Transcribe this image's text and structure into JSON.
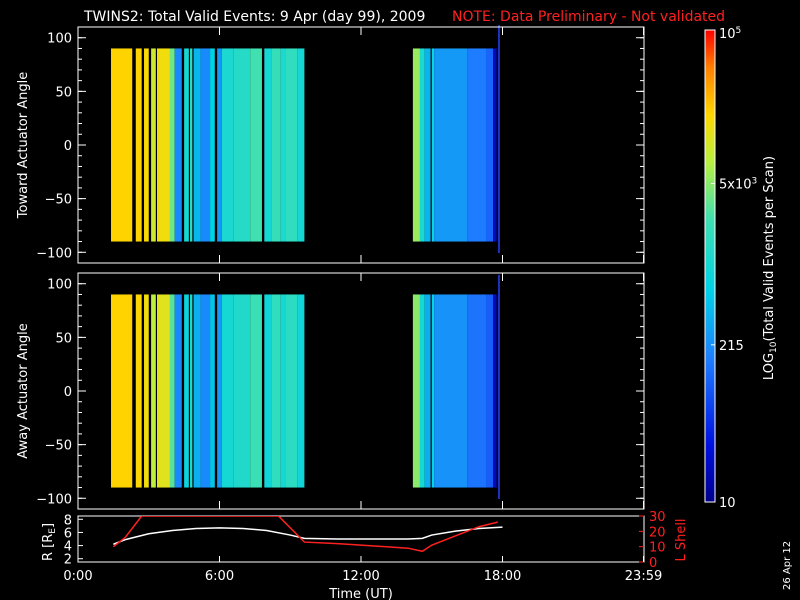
{
  "title": {
    "main": "TWINS2: Total Valid Events:  9 Apr (day  99), 2009",
    "note": "NOTE: Data Preliminary - Not validated"
  },
  "stamp": "26 Apr 12",
  "colors": {
    "background": "#000000",
    "foreground": "#ffffff",
    "note": "#ff2020",
    "lshell_line": "#ff2020",
    "radius_line": "#ffffff"
  },
  "chart_data": [
    {
      "type": "heatmap",
      "ylabel": "Toward Actuator Angle",
      "ylim": [
        -110,
        110
      ],
      "yticks": [
        "100",
        "50",
        "0",
        "−50",
        "−100"
      ],
      "ytick_values": [
        100,
        50,
        0,
        -50,
        -100
      ],
      "xlim": [
        0,
        24
      ],
      "angle_range": [
        -90,
        90
      ],
      "colorscale": "log10",
      "columns": [
        {
          "t0": 1.4,
          "t1": 2.3,
          "log": 4.3
        },
        {
          "t0": 2.45,
          "t1": 2.7,
          "log": 4.3
        },
        {
          "t0": 2.8,
          "t1": 3.0,
          "log": 4.25
        },
        {
          "t0": 3.1,
          "t1": 3.3,
          "log": 4.0
        },
        {
          "t0": 3.35,
          "t1": 3.9,
          "log": 4.2
        },
        {
          "t0": 3.9,
          "t1": 4.1,
          "log": 3.6
        },
        {
          "t0": 4.1,
          "t1": 4.4,
          "log": 2.3
        },
        {
          "t0": 4.5,
          "t1": 4.7,
          "log": 3.0
        },
        {
          "t0": 4.75,
          "t1": 4.85,
          "log": 3.2
        },
        {
          "t0": 4.9,
          "t1": 5.2,
          "log": 2.6
        },
        {
          "t0": 5.2,
          "t1": 5.6,
          "log": 2.3
        },
        {
          "t0": 5.6,
          "t1": 5.8,
          "log": 2.8
        },
        {
          "t0": 5.9,
          "t1": 6.1,
          "log": 2.4
        },
        {
          "t0": 6.1,
          "t1": 6.6,
          "log": 3.05
        },
        {
          "t0": 6.6,
          "t1": 7.3,
          "log": 3.15
        },
        {
          "t0": 7.3,
          "t1": 7.8,
          "log": 3.4
        },
        {
          "t0": 7.9,
          "t1": 8.2,
          "log": 3.0
        },
        {
          "t0": 8.2,
          "t1": 8.6,
          "log": 3.3
        },
        {
          "t0": 8.6,
          "t1": 8.8,
          "log": 3.05
        },
        {
          "t0": 8.8,
          "t1": 9.3,
          "log": 3.25
        },
        {
          "t0": 9.3,
          "t1": 9.6,
          "log": 3.0
        },
        {
          "t0": 14.2,
          "t1": 14.5,
          "log": 3.75
        },
        {
          "t0": 14.5,
          "t1": 14.7,
          "log": 3.05
        },
        {
          "t0": 14.7,
          "t1": 14.95,
          "log": 2.6
        },
        {
          "t0": 15.0,
          "t1": 15.1,
          "log": 2.9
        },
        {
          "t0": 15.1,
          "t1": 16.5,
          "log": 2.4
        },
        {
          "t0": 16.5,
          "t1": 17.3,
          "log": 2.2
        },
        {
          "t0": 17.3,
          "t1": 17.6,
          "log": 2.05
        },
        {
          "t0": 17.6,
          "t1": 17.75,
          "log": 1.3
        }
      ]
    },
    {
      "type": "heatmap",
      "ylabel": "Away Actuator Angle",
      "ylim": [
        -110,
        110
      ],
      "yticks": [
        "100",
        "50",
        "0",
        "−50",
        "−100"
      ],
      "ytick_values": [
        100,
        50,
        0,
        -50,
        -100
      ],
      "xlim": [
        0,
        24
      ],
      "angle_range": [
        -90,
        90
      ],
      "colorscale": "log10",
      "columns": [
        {
          "t0": 1.4,
          "t1": 2.3,
          "log": 4.3
        },
        {
          "t0": 2.45,
          "t1": 2.7,
          "log": 4.28
        },
        {
          "t0": 2.8,
          "t1": 3.0,
          "log": 4.2
        },
        {
          "t0": 3.1,
          "t1": 3.3,
          "log": 3.9
        },
        {
          "t0": 3.35,
          "t1": 3.9,
          "log": 4.1
        },
        {
          "t0": 3.9,
          "t1": 4.1,
          "log": 3.5
        },
        {
          "t0": 4.1,
          "t1": 4.4,
          "log": 2.3
        },
        {
          "t0": 4.5,
          "t1": 4.7,
          "log": 2.9
        },
        {
          "t0": 4.75,
          "t1": 4.85,
          "log": 3.1
        },
        {
          "t0": 4.9,
          "t1": 5.2,
          "log": 2.55
        },
        {
          "t0": 5.2,
          "t1": 5.6,
          "log": 2.3
        },
        {
          "t0": 5.6,
          "t1": 5.8,
          "log": 2.7
        },
        {
          "t0": 5.9,
          "t1": 6.1,
          "log": 2.4
        },
        {
          "t0": 6.1,
          "t1": 6.6,
          "log": 3.0
        },
        {
          "t0": 6.6,
          "t1": 7.3,
          "log": 3.1
        },
        {
          "t0": 7.3,
          "t1": 7.8,
          "log": 3.35
        },
        {
          "t0": 7.9,
          "t1": 8.2,
          "log": 2.95
        },
        {
          "t0": 8.2,
          "t1": 8.6,
          "log": 3.25
        },
        {
          "t0": 8.6,
          "t1": 8.8,
          "log": 3.0
        },
        {
          "t0": 8.8,
          "t1": 9.3,
          "log": 3.2
        },
        {
          "t0": 9.3,
          "t1": 9.6,
          "log": 2.95
        },
        {
          "t0": 14.2,
          "t1": 14.5,
          "log": 3.7
        },
        {
          "t0": 14.5,
          "t1": 14.7,
          "log": 3.0
        },
        {
          "t0": 14.7,
          "t1": 14.95,
          "log": 2.55
        },
        {
          "t0": 15.0,
          "t1": 15.1,
          "log": 2.85
        },
        {
          "t0": 15.1,
          "t1": 16.5,
          "log": 2.35
        },
        {
          "t0": 16.5,
          "t1": 17.3,
          "log": 2.15
        },
        {
          "t0": 17.3,
          "t1": 17.6,
          "log": 2.0
        },
        {
          "t0": 17.6,
          "t1": 17.75,
          "log": 1.3
        }
      ]
    },
    {
      "type": "line",
      "ylabel": "R [R",
      "ylabel_sub": "E",
      "ylabel_close": "]",
      "ylim": [
        1.5,
        8.5
      ],
      "yticks": [
        "8",
        "6",
        "4",
        "2"
      ],
      "ytick_values": [
        8,
        6,
        4,
        2
      ],
      "y2label": "L Shell",
      "y2lim": [
        0,
        30
      ],
      "y2ticks": [
        "30",
        "20",
        "10",
        "0"
      ],
      "y2tick_values": [
        30,
        20,
        10,
        0
      ],
      "xlabel": "Time (UT)",
      "xticks": [
        "0:00",
        "6:00",
        "12:00",
        "18:00",
        "23:59"
      ],
      "xtick_values": [
        0,
        6,
        12,
        18,
        23.98
      ],
      "series": [
        {
          "axis": "left",
          "x": [
            1.5,
            2.0,
            3.0,
            4.0,
            5.0,
            6.0,
            7.0,
            8.0,
            9.0,
            9.6,
            11.0,
            12.0,
            13.0,
            14.0,
            14.6,
            15.0,
            16.0,
            17.0,
            18.0
          ],
          "y": [
            4.2,
            4.9,
            5.8,
            6.3,
            6.6,
            6.7,
            6.6,
            6.3,
            5.6,
            5.1,
            5.0,
            5.0,
            5.0,
            5.0,
            5.1,
            5.6,
            6.2,
            6.6,
            6.8
          ]
        },
        {
          "axis": "right",
          "x": [
            1.5,
            2.0,
            2.7,
            8.5,
            9.6,
            11.0,
            12.0,
            13.0,
            14.0,
            14.6,
            15.0,
            16.0,
            17.0,
            17.8
          ],
          "y": [
            10,
            16,
            30,
            30,
            13,
            12,
            11,
            10,
            9,
            7,
            11,
            17,
            23,
            26
          ]
        }
      ]
    }
  ],
  "colorbar": {
    "ylabel": "LOG",
    "ylabel_sub": "10",
    "ylabel_rest": "(Total Valid  Events per Scan)",
    "range": [
      1,
      5
    ],
    "ticks": [
      {
        "text": "10",
        "sup": "",
        "value": 1
      },
      {
        "text": "215",
        "sup": "",
        "value": 2.332
      },
      {
        "text": "5x10",
        "sup": "3",
        "value": 3.699
      },
      {
        "text": "10",
        "sup": "5",
        "value": 5
      }
    ]
  }
}
